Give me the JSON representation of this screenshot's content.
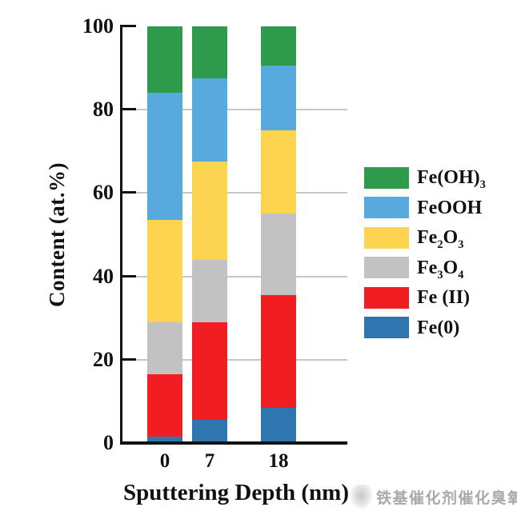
{
  "figure": {
    "background": "#ffffff"
  },
  "watermark": {
    "icon": "stamp-logo-icon",
    "text": "铁基催化剂催化臭氧",
    "color": "#a9a9a9"
  },
  "chart_data": {
    "type": "bar",
    "stacked": true,
    "title": "",
    "xlabel": "Sputtering Depth (nm)",
    "ylabel": "Content (at.%)",
    "categories": [
      "0",
      "7",
      "18"
    ],
    "series": [
      {
        "name": "Fe(0)",
        "color": "#2F76B1",
        "values": [
          1.5,
          5.5,
          8.5
        ]
      },
      {
        "name": "Fe (II)",
        "color": "#F01E23",
        "values": [
          15,
          23.5,
          27
        ]
      },
      {
        "name": "Fe₃O₄",
        "color": "#C2C2C2",
        "values": [
          12.5,
          15,
          19.5
        ]
      },
      {
        "name": "Fe₂O₃",
        "color": "#FCD44F",
        "values": [
          24.5,
          23.5,
          20
        ]
      },
      {
        "name": "FeOOH",
        "color": "#57A9DE",
        "values": [
          30.5,
          20,
          15.5
        ]
      },
      {
        "name": "Fe(OH)₃",
        "color": "#2E9B4C",
        "values": [
          16,
          12.5,
          9.5
        ]
      }
    ],
    "series_order": "bottom-to-top",
    "legend": {
      "position": "right",
      "order_top_to_bottom": [
        "Fe(OH)₃",
        "FeOOH",
        "Fe₂O₃",
        "Fe₃O₄",
        "Fe (II)",
        "Fe(0)"
      ]
    },
    "ylim": [
      0,
      100
    ],
    "yticks": [
      0,
      20,
      40,
      60,
      80,
      100
    ],
    "gridlines_at": [
      20,
      40,
      60,
      80
    ],
    "grid": true,
    "axis_color": "#121212",
    "gridline_color": "#c7c7c7"
  }
}
